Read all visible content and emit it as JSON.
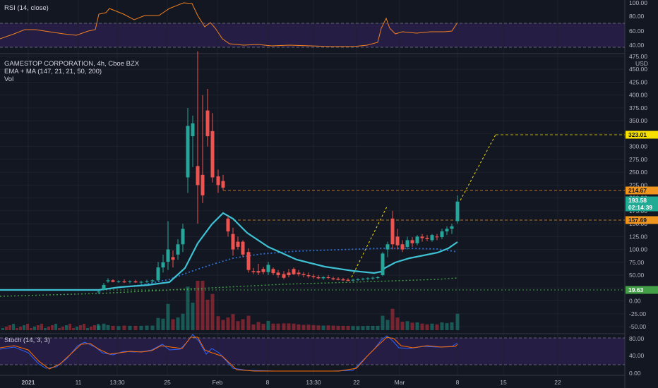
{
  "chart_data": {
    "type": "candlestick",
    "symbol_title": "GAMESTOP CORPORATION, 4h, Cboe BZX",
    "indicator_ema": "EMA + MA (147, 21, 21, 50, 200)",
    "indicator_vol": "Vol",
    "rsi_title": "RSI (14, close)",
    "stoch_title": "Stoch (14, 3, 3)",
    "currency": "USD",
    "x_ticks": [
      "2021",
      "11",
      "13:30",
      "25",
      "Feb",
      "8",
      "13:30",
      "22",
      "Mar",
      "8",
      "15",
      "22"
    ],
    "price_ticks": [
      "475.00",
      "450.00",
      "425.00",
      "400.00",
      "375.00",
      "350.00",
      "325.00",
      "300.00",
      "275.00",
      "250.00",
      "225.00",
      "200.00",
      "175.00",
      "150.00",
      "125.00",
      "100.00",
      "75.00",
      "50.00",
      "25.00",
      "0.00",
      "-25.00",
      "-50.00"
    ],
    "rsi_ticks": [
      "100.00",
      "80.00",
      "60.00",
      "40.00"
    ],
    "stoch_ticks": [
      "80.00",
      "40.00",
      "0.00"
    ],
    "price_labels": [
      {
        "value": "323.01",
        "color": "#f5e000"
      },
      {
        "value": "214.67",
        "color": "#f0961e"
      },
      {
        "value": "193.58",
        "color": "#22ab94"
      },
      {
        "value": "02:14:39",
        "color": "#22ab94"
      },
      {
        "value": "157.69",
        "color": "#f0961e"
      },
      {
        "value": "19.63",
        "color": "#43a047"
      }
    ],
    "levels": [
      323.01,
      214.67,
      157.69,
      19.63
    ],
    "candles": [
      {
        "x": 140,
        "o": 17,
        "h": 20,
        "l": 13,
        "c": 18
      },
      {
        "x": 147,
        "o": 22,
        "h": 35,
        "l": 20,
        "c": 31
      },
      {
        "x": 153,
        "o": 38,
        "h": 44,
        "l": 35,
        "c": 40
      },
      {
        "x": 160,
        "o": 40,
        "h": 42,
        "l": 36,
        "c": 37
      },
      {
        "x": 168,
        "o": 37,
        "h": 40,
        "l": 35,
        "c": 38
      },
      {
        "x": 176,
        "o": 38,
        "h": 42,
        "l": 35,
        "c": 36
      },
      {
        "x": 184,
        "o": 37,
        "h": 40,
        "l": 34,
        "c": 38
      },
      {
        "x": 192,
        "o": 38,
        "h": 41,
        "l": 35,
        "c": 36
      },
      {
        "x": 200,
        "o": 36,
        "h": 39,
        "l": 33,
        "c": 37
      },
      {
        "x": 208,
        "o": 37,
        "h": 41,
        "l": 34,
        "c": 38
      },
      {
        "x": 216,
        "o": 38,
        "h": 42,
        "l": 35,
        "c": 40
      },
      {
        "x": 224,
        "o": 40,
        "h": 76,
        "l": 38,
        "c": 65
      },
      {
        "x": 231,
        "o": 65,
        "h": 90,
        "l": 55,
        "c": 75
      },
      {
        "x": 238,
        "o": 76,
        "h": 155,
        "l": 60,
        "c": 100
      },
      {
        "x": 245,
        "o": 85,
        "h": 98,
        "l": 65,
        "c": 80
      },
      {
        "x": 252,
        "o": 90,
        "h": 120,
        "l": 80,
        "c": 110
      },
      {
        "x": 259,
        "o": 110,
        "h": 150,
        "l": 95,
        "c": 140
      },
      {
        "x": 266,
        "o": 240,
        "h": 375,
        "l": 210,
        "c": 340
      },
      {
        "x": 273,
        "o": 320,
        "h": 360,
        "l": 260,
        "c": 345
      },
      {
        "x": 280,
        "o": 262,
        "h": 485,
        "l": 150,
        "c": 225
      },
      {
        "x": 287,
        "o": 245,
        "h": 400,
        "l": 190,
        "c": 205
      },
      {
        "x": 294,
        "o": 370,
        "h": 412,
        "l": 300,
        "c": 320
      },
      {
        "x": 301,
        "o": 330,
        "h": 365,
        "l": 230,
        "c": 240
      },
      {
        "x": 309,
        "o": 242,
        "h": 255,
        "l": 210,
        "c": 225
      },
      {
        "x": 316,
        "o": 233,
        "h": 245,
        "l": 215,
        "c": 220
      },
      {
        "x": 323,
        "o": 160,
        "h": 165,
        "l": 125,
        "c": 135
      },
      {
        "x": 330,
        "o": 130,
        "h": 142,
        "l": 88,
        "c": 100
      },
      {
        "x": 337,
        "o": 115,
        "h": 125,
        "l": 100,
        "c": 105
      },
      {
        "x": 344,
        "o": 115,
        "h": 118,
        "l": 85,
        "c": 90
      },
      {
        "x": 352,
        "o": 95,
        "h": 102,
        "l": 55,
        "c": 60
      },
      {
        "x": 359,
        "o": 58,
        "h": 64,
        "l": 52,
        "c": 56
      },
      {
        "x": 366,
        "o": 58,
        "h": 72,
        "l": 50,
        "c": 55
      },
      {
        "x": 373,
        "o": 62,
        "h": 66,
        "l": 52,
        "c": 56
      },
      {
        "x": 380,
        "o": 56,
        "h": 76,
        "l": 50,
        "c": 70
      },
      {
        "x": 387,
        "o": 62,
        "h": 65,
        "l": 50,
        "c": 54
      },
      {
        "x": 394,
        "o": 55,
        "h": 60,
        "l": 45,
        "c": 50
      },
      {
        "x": 402,
        "o": 52,
        "h": 58,
        "l": 42,
        "c": 45
      },
      {
        "x": 409,
        "o": 55,
        "h": 62,
        "l": 46,
        "c": 50
      },
      {
        "x": 416,
        "o": 62,
        "h": 65,
        "l": 50,
        "c": 52
      },
      {
        "x": 423,
        "o": 55,
        "h": 60,
        "l": 48,
        "c": 52
      },
      {
        "x": 430,
        "o": 52,
        "h": 56,
        "l": 46,
        "c": 50
      },
      {
        "x": 437,
        "o": 50,
        "h": 55,
        "l": 44,
        "c": 48
      },
      {
        "x": 444,
        "o": 48,
        "h": 52,
        "l": 43,
        "c": 46
      },
      {
        "x": 451,
        "o": 46,
        "h": 50,
        "l": 42,
        "c": 44
      },
      {
        "x": 458,
        "o": 44,
        "h": 48,
        "l": 41,
        "c": 46
      },
      {
        "x": 465,
        "o": 46,
        "h": 50,
        "l": 42,
        "c": 45
      },
      {
        "x": 472,
        "o": 44,
        "h": 47,
        "l": 40,
        "c": 42
      },
      {
        "x": 479,
        "o": 43,
        "h": 46,
        "l": 40,
        "c": 41
      },
      {
        "x": 486,
        "o": 42,
        "h": 45,
        "l": 39,
        "c": 40
      },
      {
        "x": 493,
        "o": 41,
        "h": 44,
        "l": 38,
        "c": 39
      },
      {
        "x": 500,
        "o": 40,
        "h": 43,
        "l": 38,
        "c": 41
      },
      {
        "x": 507,
        "o": 41,
        "h": 44,
        "l": 39,
        "c": 42
      },
      {
        "x": 514,
        "o": 42,
        "h": 45,
        "l": 40,
        "c": 43
      },
      {
        "x": 521,
        "o": 43,
        "h": 46,
        "l": 40,
        "c": 44
      },
      {
        "x": 528,
        "o": 44,
        "h": 47,
        "l": 41,
        "c": 45
      },
      {
        "x": 535,
        "o": 45,
        "h": 48,
        "l": 42,
        "c": 46
      },
      {
        "x": 542,
        "o": 50,
        "h": 95,
        "l": 48,
        "c": 92
      },
      {
        "x": 549,
        "o": 100,
        "h": 115,
        "l": 85,
        "c": 110
      },
      {
        "x": 556,
        "o": 160,
        "h": 175,
        "l": 100,
        "c": 110
      },
      {
        "x": 563,
        "o": 125,
        "h": 140,
        "l": 100,
        "c": 108
      },
      {
        "x": 570,
        "o": 110,
        "h": 118,
        "l": 95,
        "c": 100
      },
      {
        "x": 577,
        "o": 105,
        "h": 125,
        "l": 100,
        "c": 118
      },
      {
        "x": 584,
        "o": 118,
        "h": 124,
        "l": 105,
        "c": 112
      },
      {
        "x": 591,
        "o": 112,
        "h": 128,
        "l": 108,
        "c": 125
      },
      {
        "x": 598,
        "o": 125,
        "h": 130,
        "l": 115,
        "c": 122
      },
      {
        "x": 605,
        "o": 122,
        "h": 128,
        "l": 116,
        "c": 120
      },
      {
        "x": 612,
        "o": 118,
        "h": 130,
        "l": 115,
        "c": 128
      },
      {
        "x": 619,
        "o": 125,
        "h": 130,
        "l": 118,
        "c": 124
      },
      {
        "x": 626,
        "o": 124,
        "h": 140,
        "l": 120,
        "c": 135
      },
      {
        "x": 633,
        "o": 135,
        "h": 145,
        "l": 128,
        "c": 140
      },
      {
        "x": 640,
        "o": 140,
        "h": 150,
        "l": 130,
        "c": 145
      },
      {
        "x": 648,
        "o": 155,
        "h": 205,
        "l": 150,
        "c": 193
      }
    ]
  }
}
